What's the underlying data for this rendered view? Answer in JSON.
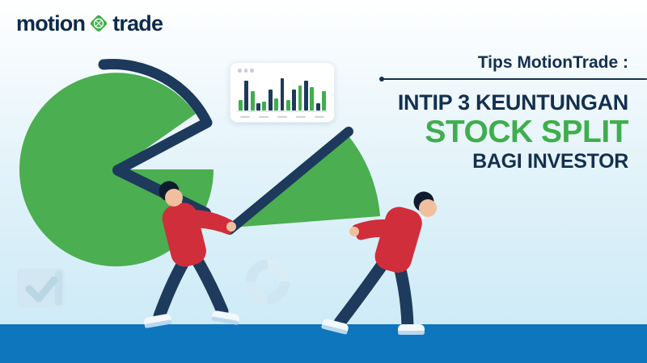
{
  "banner": {
    "logo": {
      "word1": "motion",
      "word2": "trade",
      "icon": "diamond-x-icon"
    },
    "headline": {
      "kicker": "Tips MotionTrade :",
      "line1": "INTIP 3 KEUNTUNGAN",
      "line2": "STOCK SPLIT",
      "line3": "BAGI INVESTOR"
    }
  },
  "chart_data": {
    "type": "bar",
    "title": "",
    "values": [
      30,
      85,
      55,
      20,
      25,
      60,
      35,
      90,
      30,
      60,
      70,
      85,
      65,
      20,
      55
    ],
    "series_colors": [
      "#3fae4c",
      "#1d3a5c"
    ],
    "color_pattern": "alternating green/navy starting with green",
    "ylim": [
      0,
      100
    ],
    "x_tick_placeholder_count": 5,
    "legend": "none",
    "axis_labels": "none (decorative placeholder dashes below baseline)"
  },
  "palette": {
    "brand_navy": "#14304f",
    "brand_green": "#3fae4c",
    "illustration_navy": "#1d3a5c",
    "pie_green": "#4bae50",
    "shirt_red": "#d02e3a",
    "skin": "#f0c09e",
    "hair_black": "#0f1c2e",
    "floor_blue": "#0d76bc",
    "background_top": "#ffffff",
    "background_bottom": "#c9e9f6",
    "card_background": "#ffffff"
  }
}
